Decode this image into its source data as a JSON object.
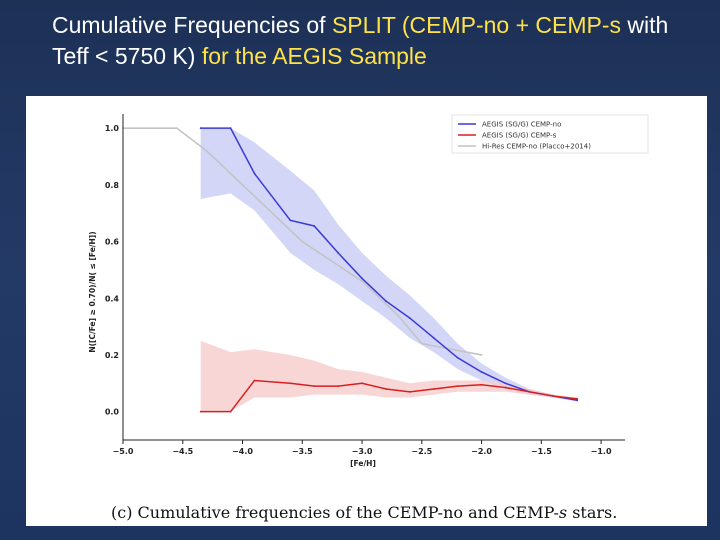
{
  "slide": {
    "title_part1": "Cumulative Frequencies of ",
    "title_part2": "SPLIT (CEMP-no + ",
    "title_part3": "CEMP-s",
    "title_part4": " with Teff < 5750 K) ",
    "title_part5": "for the ",
    "title_part6": "AEGIS Sample"
  },
  "colors": {
    "title_text": "#ffffff",
    "title_highlight": "#ffe24a",
    "cemp_no": "#3a3ad6",
    "cemp_no_band": "#c8ccf5",
    "cemp_s": "#d62020",
    "cemp_s_band": "#f8cccc",
    "placco": "#c4c4c4"
  },
  "chart_data": {
    "type": "line",
    "title": "",
    "xlabel": "[Fe/H]",
    "ylabel": "N([C/Fe] ≥ 0.70)/N( ≤ [Fe/H])",
    "xlim": [
      -5.0,
      -0.8
    ],
    "ylim": [
      -0.1,
      1.05
    ],
    "xticks": [
      -5.0,
      -4.5,
      -4.0,
      -3.5,
      -3.0,
      -2.5,
      -2.0,
      -1.5,
      -1.0
    ],
    "xtick_labels": [
      "−5.0",
      "−4.5",
      "−4.0",
      "−3.5",
      "−3.0",
      "−2.5",
      "−2.0",
      "−1.5",
      "−1.0"
    ],
    "yticks": [
      0.0,
      0.2,
      0.4,
      0.6,
      0.8,
      1.0
    ],
    "ytick_labels": [
      "0.0",
      "0.2",
      "0.4",
      "0.6",
      "0.8",
      "1.0"
    ],
    "legend_position": "top-right",
    "series": [
      {
        "name": "AEGIS (SG/G) CEMP-no",
        "color": "#3a3ad6",
        "x": [
          -4.35,
          -4.1,
          -3.9,
          -3.6,
          -3.4,
          -3.2,
          -3.0,
          -2.8,
          -2.6,
          -2.4,
          -2.2,
          -2.0,
          -1.8,
          -1.6,
          -1.4,
          -1.2
        ],
        "y": [
          1.0,
          1.0,
          0.84,
          0.675,
          0.655,
          0.56,
          0.47,
          0.39,
          0.33,
          0.26,
          0.19,
          0.14,
          0.1,
          0.07,
          0.055,
          0.04
        ],
        "band_upper": [
          1.0,
          1.0,
          0.95,
          0.85,
          0.78,
          0.66,
          0.56,
          0.48,
          0.41,
          0.33,
          0.24,
          0.17,
          0.12,
          0.08,
          0.06,
          0.045
        ],
        "band_lower": [
          0.75,
          0.77,
          0.71,
          0.56,
          0.5,
          0.45,
          0.39,
          0.33,
          0.26,
          0.21,
          0.15,
          0.11,
          0.08,
          0.06,
          0.05,
          0.035
        ]
      },
      {
        "name": "AEGIS (SG/G) CEMP-s",
        "color": "#d62020",
        "x": [
          -4.35,
          -4.1,
          -3.9,
          -3.6,
          -3.4,
          -3.2,
          -3.0,
          -2.8,
          -2.6,
          -2.4,
          -2.2,
          -2.0,
          -1.8,
          -1.6,
          -1.4,
          -1.2
        ],
        "y": [
          0.0,
          0.0,
          0.11,
          0.1,
          0.09,
          0.09,
          0.1,
          0.08,
          0.07,
          0.08,
          0.09,
          0.095,
          0.085,
          0.07,
          0.055,
          0.045
        ],
        "band_upper": [
          0.25,
          0.21,
          0.22,
          0.2,
          0.18,
          0.15,
          0.14,
          0.12,
          0.1,
          0.11,
          0.11,
          0.11,
          0.1,
          0.08,
          0.06,
          0.05
        ],
        "band_lower": [
          0.0,
          0.0,
          0.05,
          0.05,
          0.06,
          0.06,
          0.06,
          0.05,
          0.05,
          0.06,
          0.07,
          0.07,
          0.07,
          0.06,
          0.05,
          0.04
        ]
      },
      {
        "name": "Hi-Res CEMP-no (Placco+2014)",
        "color": "#c4c4c4",
        "x": [
          -5.0,
          -4.55,
          -4.3,
          -4.0,
          -3.7,
          -3.5,
          -3.0,
          -2.7,
          -2.5,
          -2.0
        ],
        "y": [
          1.0,
          1.0,
          0.92,
          0.8,
          0.68,
          0.6,
          0.46,
          0.34,
          0.24,
          0.2
        ]
      }
    ]
  },
  "caption": {
    "prefix": "(c) Cumulative frequencies of the CEMP-no and CEMP-",
    "italic": "s",
    "suffix": " stars."
  }
}
